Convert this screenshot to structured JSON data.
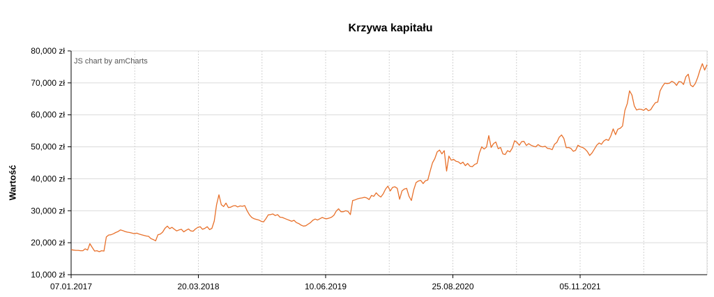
{
  "chart_data": {
    "type": "line",
    "title": "Krzywa kapitału",
    "ylabel": "Wartość",
    "xlabel": "",
    "credit": "JS chart by amCharts",
    "ylim": [
      10000,
      80000
    ],
    "y_ticks": [
      "10,000 zł",
      "20,000 zł",
      "30,000 zł",
      "40,000 zł",
      "50,000 zł",
      "60,000 zł",
      "70,000 zł",
      "80,000 zł"
    ],
    "x_ticks": [
      "07.01.2017",
      "20.03.2018",
      "10.06.2019",
      "25.08.2020",
      "05.11.2021"
    ],
    "grid": true,
    "line_color": "#e8702a",
    "series": [
      {
        "values": [
          17800,
          17700,
          17600,
          17600,
          17500,
          17500,
          18100,
          17700,
          19700,
          18500,
          17400,
          17500,
          17200,
          17500,
          17400,
          21800,
          22400,
          22500,
          22800,
          23200,
          23500,
          24000,
          23800,
          23500,
          23300,
          23200,
          23000,
          22800,
          23000,
          22700,
          22500,
          22300,
          22100,
          22000,
          21300,
          21000,
          20600,
          22500,
          22700,
          23300,
          24500,
          25200,
          24400,
          24800,
          24200,
          23700,
          24000,
          24200,
          23400,
          23900,
          24300,
          23700,
          23600,
          24300,
          24800,
          25000,
          24200,
          24500,
          25000,
          24100,
          24500,
          26800,
          31900,
          35000,
          31900,
          31300,
          32400,
          31000,
          31100,
          31500,
          31600,
          31200,
          31500,
          31400,
          31600,
          30000,
          28700,
          27900,
          27500,
          27300,
          27100,
          26700,
          26500,
          27500,
          28700,
          28800,
          29000,
          28500,
          28800,
          28000,
          27900,
          27600,
          27300,
          27000,
          26700,
          27000,
          26300,
          26000,
          25500,
          25200,
          25300,
          25800,
          26300,
          27000,
          27400,
          27100,
          27500,
          27900,
          27600,
          27500,
          27700,
          28000,
          28600,
          29900,
          30600,
          29700,
          29700,
          30000,
          29800,
          28800,
          33200,
          33400,
          33700,
          33900,
          34000,
          34200,
          34000,
          33500,
          34800,
          34500,
          35600,
          34800,
          34300,
          35300,
          36800,
          37700,
          36200,
          37300,
          37500,
          37000,
          33600,
          36200,
          36800,
          37000,
          34500,
          33200,
          36500,
          38800,
          39300,
          39500,
          38500,
          39400,
          39600,
          42400,
          45000,
          46300,
          48400,
          49000,
          47800,
          48800,
          42400,
          47100,
          45800,
          46100,
          45500,
          45300,
          44700,
          45200,
          44100,
          44800,
          43900,
          43800,
          44500,
          44800,
          48100,
          50000,
          49300,
          49900,
          53500,
          49800,
          51000,
          51500,
          49400,
          49800,
          47800,
          47600,
          48800,
          48400,
          49600,
          51900,
          51400,
          50500,
          51600,
          51700,
          50400,
          51000,
          50500,
          50200,
          50000,
          50700,
          50200,
          50000,
          50200,
          49500,
          49400,
          49100,
          50800,
          51400,
          53000,
          53700,
          52600,
          49700,
          49800,
          49500,
          48600,
          48900,
          50500,
          50000,
          49800,
          49300,
          48500,
          47300,
          48100,
          49300,
          50500,
          51200,
          50800,
          51800,
          52300,
          52000,
          53400,
          55600,
          53800,
          55500,
          55800,
          56500,
          61400,
          63500,
          67500,
          66200,
          62800,
          61500,
          61800,
          61700,
          61400,
          62000,
          61300,
          61600,
          62800,
          63800,
          64000,
          67500,
          68900,
          69900,
          69800,
          69900,
          70500,
          70100,
          69200,
          70400,
          70300,
          69500,
          71900,
          72700,
          69300,
          68800,
          69800,
          71600,
          74000,
          76000,
          74000,
          75700
        ]
      }
    ]
  }
}
